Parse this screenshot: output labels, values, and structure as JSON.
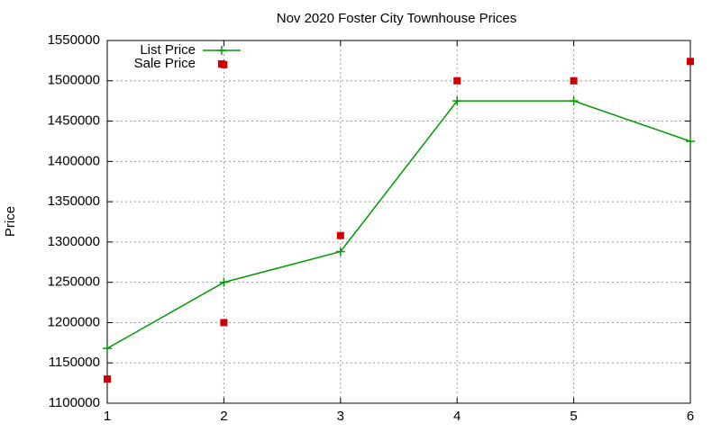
{
  "chart_data": {
    "type": "line",
    "title": "Nov 2020 Foster City Townhouse Prices",
    "y_label": "Price",
    "xlim": [
      1,
      6
    ],
    "xticks": [
      1,
      2,
      3,
      4,
      5,
      6
    ],
    "ylim": [
      1100000,
      1550000
    ],
    "yticks": [
      1100000,
      1150000,
      1200000,
      1250000,
      1300000,
      1350000,
      1400000,
      1450000,
      1500000,
      1550000
    ],
    "grid": true,
    "legend": "top-left",
    "series": [
      {
        "name": "List Price",
        "color": "#009900",
        "style": "linespoints",
        "x": [
          1,
          2,
          3,
          4,
          5,
          6
        ],
        "values": [
          1168000,
          1250000,
          1288000,
          1475000,
          1475000,
          1425000
        ]
      },
      {
        "name": "Sale Price",
        "color": "#cc0000",
        "style": "points",
        "x": [
          1,
          2,
          2,
          3,
          4,
          5,
          6
        ],
        "values": [
          1130000,
          1520000,
          1200000,
          1308000,
          1500000,
          1500000,
          1524000
        ]
      }
    ]
  }
}
